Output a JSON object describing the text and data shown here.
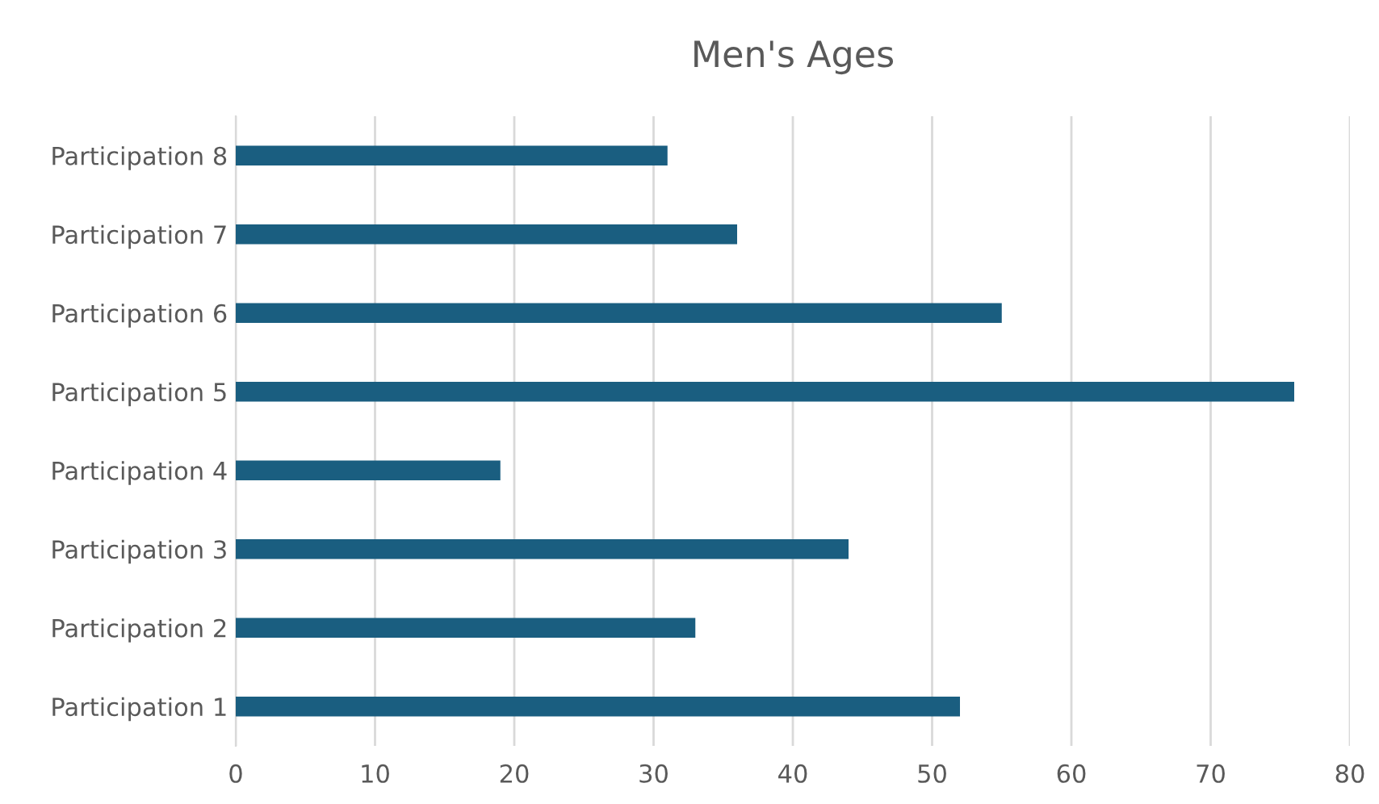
{
  "chart_data": {
    "type": "bar",
    "orientation": "horizontal",
    "title": "Men's Ages",
    "categories": [
      "Participation 8",
      "Participation 7",
      "Participation 6",
      "Participation 5",
      "Participation 4",
      "Participation 3",
      "Participation 2",
      "Participation 1"
    ],
    "values": [
      31,
      36,
      55,
      76,
      19,
      44,
      33,
      52
    ],
    "color": "#1a5e80",
    "xlim": [
      0,
      80
    ],
    "xticks": [
      0,
      10,
      20,
      30,
      40,
      50,
      60,
      70,
      80
    ],
    "grid": "x"
  }
}
